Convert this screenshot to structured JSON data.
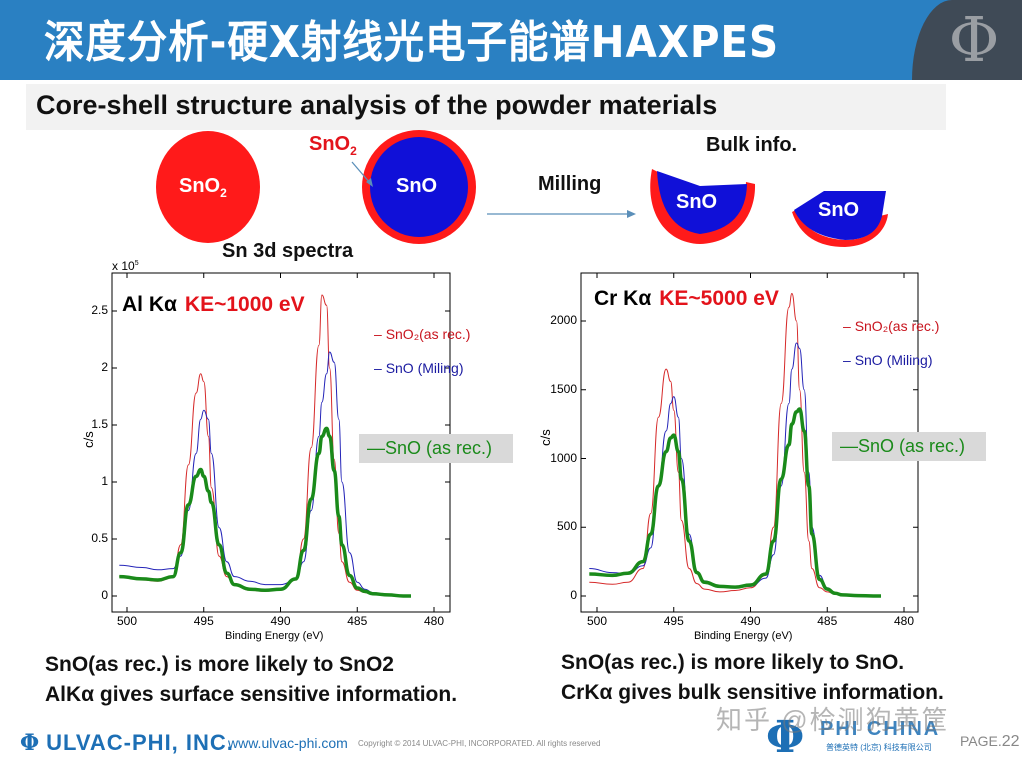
{
  "header": {
    "title": "深度分析-硬X射线光电子能谱HAXPES",
    "logo_icon": "phi-logo-icon"
  },
  "subtitle": "Core-shell structure analysis of the powder materials",
  "diagram": {
    "particle1_label": "SnO",
    "particle1_sub": "2",
    "shell_label": "SnO",
    "shell_sub": "2",
    "particle2_core_label": "SnO",
    "milling_label": "Milling",
    "bulk_info_label": "Bulk info.",
    "fragment1_label": "SnO",
    "fragment2_label": "SnO",
    "spectra_heading": "Sn 3d spectra",
    "colors": {
      "sno2": "#ff1a1a",
      "sno": "#1010d8",
      "arrow": "#5b8fb9"
    }
  },
  "charts": {
    "left": {
      "title_source": "Al Kα",
      "title_ke": "KE~1000 eV",
      "exponent_label": "x 10",
      "exponent_sup": "5",
      "ylabel": "c/s",
      "xlabel": "Binding Energy (eV)",
      "xticks": [
        "500",
        "495",
        "490",
        "485",
        "480"
      ],
      "yticks": [
        "0",
        "0.5",
        "1",
        "1.5",
        "2",
        "2.5"
      ],
      "legend": {
        "sno2": "SnO₂(as rec.)",
        "sno_milling": "SnO (Miling)",
        "sno_asrec": "SnO (as rec.)"
      }
    },
    "right": {
      "title_source": "Cr Kα",
      "title_ke": "KE~5000 eV",
      "ylabel": "c/s",
      "xlabel": "Binding Energy (eV)",
      "xticks": [
        "500",
        "495",
        "490",
        "485",
        "480"
      ],
      "yticks": [
        "0",
        "500",
        "1000",
        "1500",
        "2000"
      ],
      "legend": {
        "sno2": "SnO₂(as rec.)",
        "sno_milling": "SnO (Miling)",
        "sno_asrec": "SnO (as rec.)"
      }
    }
  },
  "conclusions": {
    "left_line1": "SnO(as rec.) is more likely to SnO2",
    "left_line2": "AlKα  gives surface sensitive information.",
    "right_line1": "SnO(as rec.) is more likely to SnO.",
    "right_line2": "CrKα  gives bulk sensitive information."
  },
  "footer": {
    "company": "ULVAC-PHI, INC.",
    "url": "www.ulvac-phi.com",
    "copyright": "Copyright © 2014 ULVAC-PHI, INCORPORATED. All rights reserved",
    "watermark": "知乎 @检测狗黄筐",
    "phi_china": "PHI CHINA",
    "phi_china_sub": "普德英特 (北京) 科技有限公司",
    "page_label": "PAGE.",
    "page_number": "22"
  },
  "chart_data": [
    {
      "type": "line",
      "title": "Al Kα KE~1000 eV — Sn 3d spectra",
      "xlabel": "Binding Energy (eV)",
      "ylabel": "c/s (x 10^5)",
      "xlim": [
        501,
        479
      ],
      "ylim": [
        -0.13,
        2.8
      ],
      "x_reversed": true,
      "legend_position": "right",
      "x": [
        500.5,
        499,
        498,
        497,
        496.5,
        496,
        495.5,
        495.2,
        495,
        494.7,
        494.5,
        494,
        493.5,
        493,
        492,
        491,
        490,
        489,
        488.5,
        488,
        487.5,
        487.3,
        487,
        486.8,
        486.5,
        486.2,
        486,
        485.5,
        485,
        484.5,
        484,
        483,
        482,
        481.5
      ],
      "series": [
        {
          "name": "SnO2(as rec.)",
          "color": "#d62a2a",
          "values": [
            0.17,
            0.14,
            0.13,
            0.16,
            0.45,
            1.15,
            1.78,
            1.95,
            1.88,
            1.4,
            0.95,
            0.35,
            0.17,
            0.1,
            0.05,
            0.04,
            0.06,
            0.14,
            0.5,
            1.3,
            2.2,
            2.64,
            2.55,
            2.0,
            1.2,
            0.55,
            0.3,
            0.12,
            0.05,
            0.03,
            0.02,
            0.01,
            0.0,
            0.0
          ]
        },
        {
          "name": "SnO (Miling)",
          "color": "#2424b8",
          "values": [
            0.27,
            0.25,
            0.23,
            0.24,
            0.35,
            0.75,
            1.25,
            1.55,
            1.63,
            1.55,
            1.25,
            0.6,
            0.3,
            0.17,
            0.13,
            0.1,
            0.1,
            0.14,
            0.3,
            0.75,
            1.4,
            1.7,
            1.95,
            2.14,
            2.05,
            1.55,
            1.0,
            0.38,
            0.12,
            0.06,
            0.03,
            0.01,
            0.0,
            0.0
          ]
        },
        {
          "name": "SnO (as rec.)",
          "color": "#1a8a1a",
          "values": [
            0.17,
            0.15,
            0.14,
            0.17,
            0.38,
            0.8,
            1.05,
            1.11,
            1.05,
            0.92,
            0.82,
            0.45,
            0.2,
            0.1,
            0.06,
            0.05,
            0.06,
            0.15,
            0.4,
            0.85,
            1.25,
            1.4,
            1.47,
            1.4,
            1.1,
            0.7,
            0.45,
            0.18,
            0.07,
            0.04,
            0.02,
            0.01,
            0.0,
            0.0
          ]
        }
      ]
    },
    {
      "type": "line",
      "title": "Cr Kα KE~5000 eV — Sn 3d spectra",
      "xlabel": "Binding Energy (eV)",
      "ylabel": "c/s",
      "xlim": [
        501,
        479
      ],
      "ylim": [
        -100,
        2330
      ],
      "x_reversed": true,
      "legend_position": "right",
      "x": [
        500.5,
        499,
        498,
        497,
        496.5,
        496,
        495.5,
        495.2,
        495,
        494.7,
        494.5,
        494,
        493.5,
        493,
        492,
        491,
        490,
        489,
        488.5,
        488,
        487.5,
        487.3,
        487,
        486.8,
        486.5,
        486.2,
        486,
        485.5,
        485,
        484.5,
        484,
        483,
        482,
        481.5
      ],
      "series": [
        {
          "name": "SnO2(as rec.)",
          "color": "#d62a2a",
          "values": [
            100,
            85,
            100,
            200,
            600,
            1300,
            1650,
            1560,
            1350,
            900,
            550,
            200,
            90,
            50,
            30,
            40,
            60,
            150,
            500,
            1400,
            2100,
            2200,
            2000,
            1500,
            900,
            400,
            200,
            60,
            30,
            15,
            8,
            3,
            0,
            0
          ]
        },
        {
          "name": "SnO (Miling)",
          "color": "#2424b8",
          "values": [
            200,
            170,
            160,
            220,
            350,
            800,
            1200,
            1400,
            1450,
            1300,
            1000,
            450,
            180,
            110,
            70,
            60,
            70,
            130,
            300,
            800,
            1400,
            1650,
            1840,
            1800,
            1500,
            900,
            500,
            150,
            60,
            25,
            10,
            3,
            0,
            0
          ]
        },
        {
          "name": "SnO (as rec.)",
          "color": "#1a8a1a",
          "values": [
            160,
            150,
            165,
            250,
            450,
            800,
            1050,
            1150,
            1170,
            1050,
            850,
            400,
            170,
            100,
            70,
            65,
            80,
            160,
            400,
            850,
            1100,
            1250,
            1340,
            1360,
            1200,
            800,
            450,
            120,
            50,
            20,
            8,
            3,
            0,
            0
          ]
        }
      ]
    }
  ]
}
